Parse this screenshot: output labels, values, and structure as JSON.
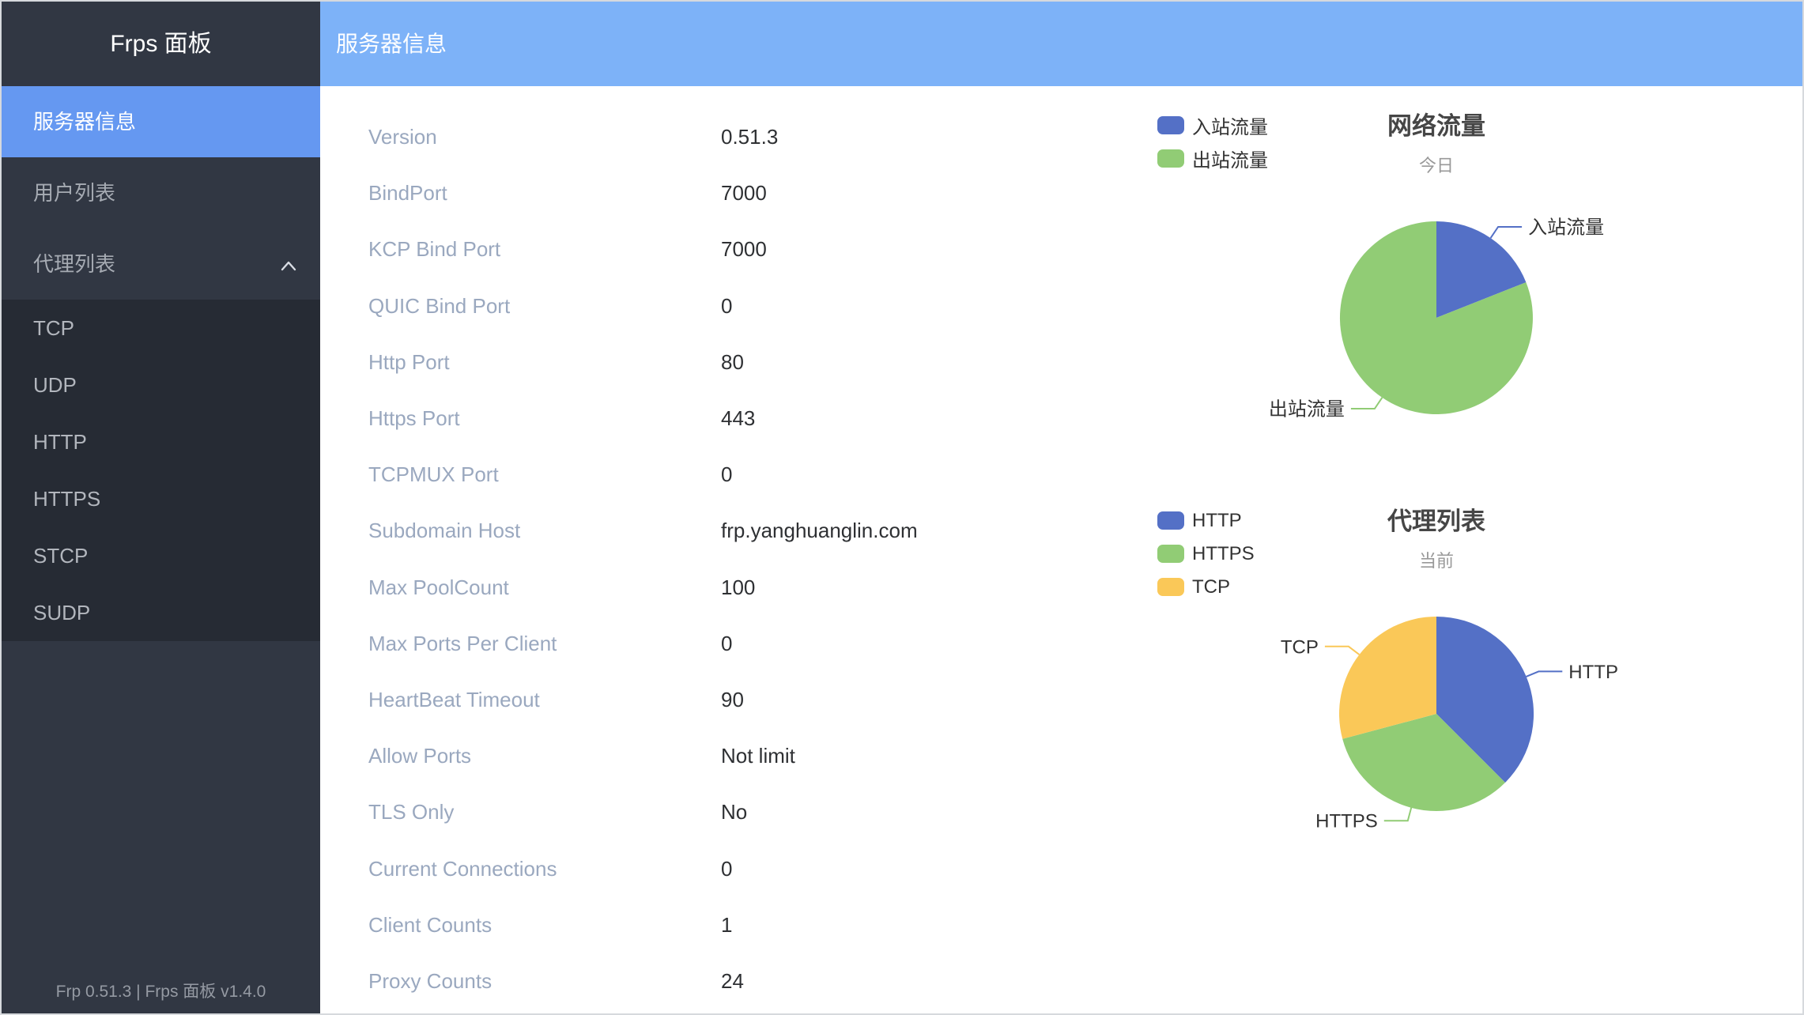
{
  "sidebar": {
    "logo": "Frps 面板",
    "items": [
      {
        "label": "服务器信息",
        "active": true
      },
      {
        "label": "用户列表",
        "active": false
      },
      {
        "label": "代理列表",
        "active": false,
        "expanded": true
      }
    ],
    "subitems": [
      "TCP",
      "UDP",
      "HTTP",
      "HTTPS",
      "STCP",
      "SUDP"
    ],
    "footer": "Frp 0.51.3 | Frps 面板 v1.4.0"
  },
  "header": {
    "title": "服务器信息"
  },
  "info": {
    "rows": [
      {
        "label": "Version",
        "value": "0.51.3"
      },
      {
        "label": "BindPort",
        "value": "7000"
      },
      {
        "label": "KCP Bind Port",
        "value": "7000"
      },
      {
        "label": "QUIC Bind Port",
        "value": "0"
      },
      {
        "label": "Http Port",
        "value": "80"
      },
      {
        "label": "Https Port",
        "value": "443"
      },
      {
        "label": "TCPMUX Port",
        "value": "0"
      },
      {
        "label": "Subdomain Host",
        "value": "frp.yanghuanglin.com"
      },
      {
        "label": "Max PoolCount",
        "value": "100"
      },
      {
        "label": "Max Ports Per Client",
        "value": "0"
      },
      {
        "label": "HeartBeat Timeout",
        "value": "90"
      },
      {
        "label": "Allow Ports",
        "value": "Not limit"
      },
      {
        "label": "TLS Only",
        "value": "No"
      },
      {
        "label": "Current Connections",
        "value": "0"
      },
      {
        "label": "Client Counts",
        "value": "1"
      },
      {
        "label": "Proxy Counts",
        "value": "24"
      }
    ]
  },
  "chart_data": [
    {
      "type": "pie",
      "title": "网络流量",
      "subtitle": "今日",
      "legend_position": "top-left",
      "series": [
        {
          "name": "入站流量",
          "value": 19,
          "color": "#5470c6"
        },
        {
          "name": "出站流量",
          "value": 81,
          "color": "#91cc75"
        }
      ]
    },
    {
      "type": "pie",
      "title": "代理列表",
      "subtitle": "当前",
      "legend_position": "top-left",
      "series": [
        {
          "name": "HTTP",
          "value": 9,
          "color": "#5470c6"
        },
        {
          "name": "HTTPS",
          "value": 8,
          "color": "#91cc75"
        },
        {
          "name": "TCP",
          "value": 7,
          "color": "#fac858"
        }
      ]
    }
  ],
  "colors": {
    "header_bg": "#7db2f8",
    "active_item_bg": "#6598f1",
    "sidebar_bg": "#313743",
    "submenu_bg": "#262b34",
    "info_label": "#9aa8bf",
    "info_value": "#2e3033"
  }
}
